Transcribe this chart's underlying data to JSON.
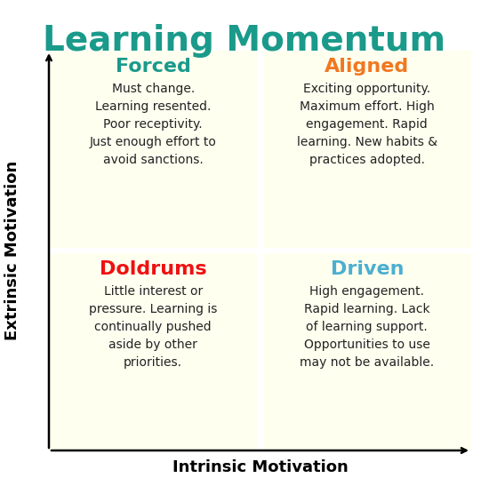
{
  "title": "Learning Momentum",
  "title_color": "#1A9A8A",
  "title_fontsize": 28,
  "xlabel": "Intrinsic Motivation",
  "ylabel": "Extrinsic Motivation",
  "axis_label_fontsize": 13,
  "bg_color": "#FFFFFF",
  "cell_bg_color": "#FFFFF0",
  "quadrants": [
    {
      "label": "Forced",
      "label_color": "#1A9A8A",
      "label_fontsize": 16,
      "text": "Must change.\nLearning resented.\nPoor receptivity.\nJust enough effort to\navoid sanctions.",
      "text_fontsize": 10,
      "text_color": "#222222",
      "position": "top-left"
    },
    {
      "label": "Aligned",
      "label_color": "#F07820",
      "label_fontsize": 16,
      "text": "Exciting opportunity.\nMaximum effort. High\nengagement. Rapid\nlearning. New habits &\npractices adopted.",
      "text_fontsize": 10,
      "text_color": "#222222",
      "position": "top-right"
    },
    {
      "label": "Doldrums",
      "label_color": "#EE1111",
      "label_fontsize": 16,
      "text": "Little interest or\npressure. Learning is\ncontinually pushed\naside by other\npriorities.",
      "text_fontsize": 10,
      "text_color": "#222222",
      "position": "bottom-left"
    },
    {
      "label": "Driven",
      "label_color": "#4BAFD0",
      "label_fontsize": 16,
      "text": "High engagement.\nRapid learning. Lack\nof learning support.\nOpportunities to use\nmay not be available.",
      "text_fontsize": 10,
      "text_color": "#222222",
      "position": "bottom-right"
    }
  ],
  "figsize": [
    5.5,
    5.47
  ],
  "dpi": 100
}
